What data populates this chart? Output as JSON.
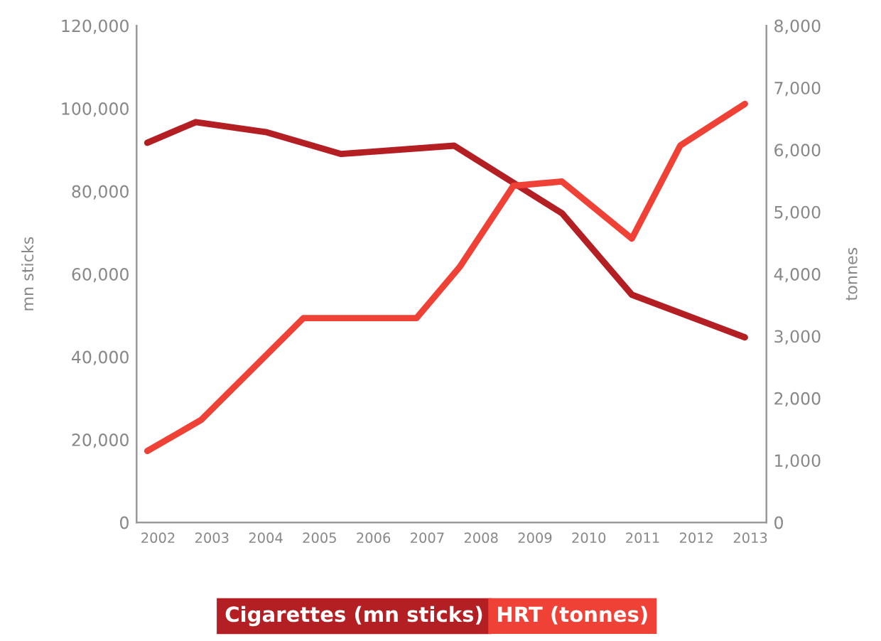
{
  "chart_data": {
    "type": "line",
    "ylabel": "mn sticks",
    "y2label": "tonnes",
    "xlim": [
      2001.6,
      2013.3
    ],
    "xticks": [
      2002,
      2003,
      2004,
      2005,
      2006,
      2007,
      2008,
      2009,
      2010,
      2011,
      2012,
      2013
    ],
    "ylim": [
      0,
      120000
    ],
    "yticks": [
      {
        "value": 0,
        "label": "0"
      },
      {
        "value": 20000,
        "label": "20,000"
      },
      {
        "value": 40000,
        "label": "40,000"
      },
      {
        "value": 60000,
        "label": "60,000"
      },
      {
        "value": 80000,
        "label": "80,000"
      },
      {
        "value": 100000,
        "label": "100,000"
      },
      {
        "value": 120000,
        "label": "120,000"
      }
    ],
    "y2lim": [
      0,
      8000
    ],
    "y2ticks": [
      {
        "value": 0,
        "label": "0"
      },
      {
        "value": 1000,
        "label": "1,000"
      },
      {
        "value": 2000,
        "label": "2,000"
      },
      {
        "value": 3000,
        "label": "3,000"
      },
      {
        "value": 4000,
        "label": "4,000"
      },
      {
        "value": 5000,
        "label": "5,000"
      },
      {
        "value": 6000,
        "label": "6,000"
      },
      {
        "value": 7000,
        "label": "7,000"
      },
      {
        "value": 8000,
        "label": "8,000"
      }
    ],
    "grid": false,
    "legend": "bottom",
    "marker": "none",
    "line_style": "solid",
    "series": [
      {
        "name": "Cigarettes (mn sticks)",
        "color": "#b41f24",
        "x": [
          2001.8,
          2002.7,
          2004.0,
          2005.4,
          2007.5,
          2009.5,
          2010.8,
          2012.9
        ],
        "values": [
          91700,
          96700,
          94300,
          89000,
          91000,
          74700,
          55000,
          44700
        ]
      },
      {
        "name": "HRT (tonnes)",
        "color": "#ef4136",
        "axis": "y2",
        "x": [
          2001.8,
          2002.8,
          2004.7,
          2006.8,
          2007.6,
          2008.6,
          2009.5,
          2010.8,
          2011.7,
          2012.9
        ],
        "values": [
          1150,
          1650,
          3290,
          3290,
          4110,
          5420,
          5490,
          4570,
          6070,
          6740
        ]
      }
    ]
  }
}
